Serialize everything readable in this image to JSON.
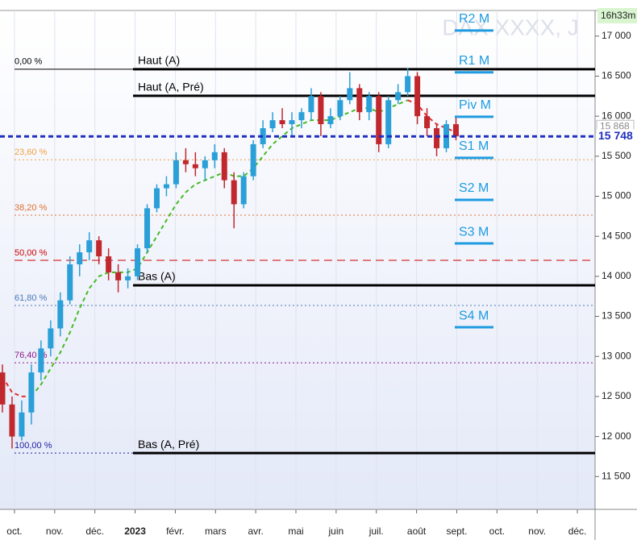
{
  "chart_data": {
    "type": "candlestick",
    "title": "DAX XXXX, J",
    "time_label": "16h33m",
    "up_color": "#2a9fd8",
    "down_color": "#c0282e",
    "xlim": [
      -0.36,
      14.44
    ],
    "xticks": [
      {
        "value": 0,
        "label": "oct."
      },
      {
        "value": 1,
        "label": "nov."
      },
      {
        "value": 2,
        "label": "déc."
      },
      {
        "value": 3,
        "label": "2023"
      },
      {
        "value": 4,
        "label": "févr."
      },
      {
        "value": 5,
        "label": "mars"
      },
      {
        "value": 6,
        "label": "avr."
      },
      {
        "value": 7,
        "label": "mai"
      },
      {
        "value": 8,
        "label": "juin"
      },
      {
        "value": 9,
        "label": "juil."
      },
      {
        "value": 10,
        "label": "août"
      },
      {
        "value": 11,
        "label": "sept."
      },
      {
        "value": 12,
        "label": "oct."
      },
      {
        "value": 13,
        "label": "nov."
      },
      {
        "value": 14,
        "label": "déc."
      }
    ],
    "ylim": [
      11090,
      17320
    ],
    "yticks": [
      {
        "value": 11500,
        "label": "11 500"
      },
      {
        "value": 12000,
        "label": "12 000"
      },
      {
        "value": 12500,
        "label": "12 500"
      },
      {
        "value": 13000,
        "label": "13 000"
      },
      {
        "value": 13500,
        "label": "13 500"
      },
      {
        "value": 14000,
        "label": "14 000"
      },
      {
        "value": 14500,
        "label": "14 500"
      },
      {
        "value": 15000,
        "label": "15 000"
      },
      {
        "value": 15500,
        "label": "15 500"
      },
      {
        "value": 16000,
        "label": "16 000"
      },
      {
        "value": 16500,
        "label": "16 500"
      },
      {
        "value": 17000,
        "label": "17 000"
      }
    ],
    "x": [
      -0.3,
      -0.06,
      0.18,
      0.42,
      0.66,
      0.9,
      1.14,
      1.38,
      1.62,
      1.86,
      2.1,
      2.34,
      2.58,
      2.82,
      3.06,
      3.3,
      3.54,
      3.78,
      4.02,
      4.26,
      4.5,
      4.74,
      4.98,
      5.22,
      5.46,
      5.7,
      5.94,
      6.18,
      6.42,
      6.66,
      6.9,
      7.14,
      7.38,
      7.62,
      7.86,
      8.1,
      8.34,
      8.58,
      8.82,
      9.06,
      9.3,
      9.54,
      9.78,
      10.02,
      10.26,
      10.5,
      10.74,
      10.98
    ],
    "open": [
      12800,
      12400,
      12000,
      12300,
      12800,
      13100,
      13350,
      13700,
      14150,
      14300,
      14450,
      14250,
      14050,
      13950,
      14000,
      14350,
      14850,
      15100,
      15150,
      15450,
      15400,
      15350,
      15450,
      15550,
      15200,
      14900,
      15250,
      15650,
      15850,
      15950,
      15900,
      15950,
      16050,
      16250,
      15900,
      16000,
      16200,
      16350,
      16050,
      16250,
      15650,
      16200,
      16300,
      16500,
      16000,
      15850,
      15600,
      15900
    ],
    "high": [
      12900,
      12500,
      12450,
      12900,
      13200,
      13450,
      13800,
      14250,
      14400,
      14550,
      14500,
      14350,
      14150,
      14100,
      14400,
      14900,
      15150,
      15250,
      15550,
      15600,
      15550,
      15500,
      15650,
      15600,
      15300,
      15300,
      15700,
      15950,
      16050,
      16100,
      16050,
      16100,
      16350,
      16300,
      16100,
      16250,
      16550,
      16400,
      16300,
      16300,
      16250,
      16400,
      16600,
      16550,
      16100,
      15900,
      15950,
      16000
    ],
    "low": [
      12300,
      11850,
      11950,
      12150,
      12700,
      13000,
      13250,
      13650,
      14000,
      14200,
      14150,
      13950,
      13800,
      13850,
      13950,
      14300,
      14800,
      15000,
      15100,
      15300,
      15250,
      15200,
      15350,
      15100,
      14600,
      14850,
      15200,
      15600,
      15800,
      15850,
      15750,
      15850,
      15950,
      15750,
      15850,
      15950,
      16150,
      15950,
      15950,
      15550,
      15600,
      16150,
      16250,
      15900,
      15750,
      15500,
      15550,
      15700
    ],
    "close": [
      12400,
      12000,
      12300,
      12800,
      13100,
      13350,
      13700,
      14150,
      14300,
      14450,
      14250,
      14050,
      13950,
      14000,
      14350,
      14850,
      15100,
      15150,
      15450,
      15400,
      15350,
      15450,
      15550,
      15200,
      14900,
      15250,
      15650,
      15850,
      15950,
      15900,
      15950,
      16050,
      16250,
      15900,
      16000,
      16200,
      16350,
      16050,
      16250,
      15650,
      16200,
      16300,
      16500,
      16000,
      15850,
      15600,
      15900,
      15748
    ],
    "moving_averages": [
      {
        "color": "#44bb22",
        "values": [
          null,
          null,
          null,
          12500,
          12650,
          12850,
          13050,
          13300,
          13600,
          13850,
          14000,
          14050,
          14050,
          14050,
          14100,
          14300,
          14500,
          14700,
          14900,
          15050,
          15150,
          15200,
          15250,
          15300,
          15250,
          15250,
          15350,
          15500,
          15650,
          15750,
          15850,
          15900,
          15950,
          15950,
          15950,
          16000,
          16050,
          16100,
          16100,
          16050,
          16100,
          16150,
          16200,
          null,
          null,
          null,
          null,
          null
        ]
      },
      {
        "color": "#e03030",
        "values": [
          12750,
          12550,
          12500,
          12500,
          null,
          null,
          null,
          null,
          null,
          null,
          null,
          null,
          null,
          null,
          null,
          null,
          null,
          null,
          null,
          null,
          null,
          null,
          null,
          null,
          null,
          null,
          null,
          null,
          null,
          null,
          null,
          null,
          null,
          null,
          null,
          null,
          null,
          null,
          null,
          null,
          null,
          null,
          16200,
          16150,
          16000,
          15900,
          15850,
          15800
        ]
      }
    ],
    "fib_levels": [
      {
        "label": "0,00 %",
        "value": 16587,
        "color": "#000000"
      },
      {
        "label": "23,60 %",
        "value": 15456,
        "color": "#f0a040"
      },
      {
        "label": "38,20 %",
        "value": 14764,
        "color": "#e07030"
      },
      {
        "label": "50,00 %",
        "value": 14200,
        "color": "#cc0000"
      },
      {
        "label": "61,80 %",
        "value": 13636,
        "color": "#4a7ab8"
      },
      {
        "label": "76,40 %",
        "value": 12921,
        "color": "#8b1a8b"
      },
      {
        "label": "100,00 %",
        "value": 11793,
        "color": "#2020a0"
      }
    ],
    "levels": [
      {
        "label": "Haut (A)",
        "value": 16587
      },
      {
        "label": "Haut (A, Pré)",
        "value": 16255
      },
      {
        "label": "Bas (A)",
        "value": 13888
      },
      {
        "label": "Bas (A, Pré)",
        "value": 11793
      }
    ],
    "pivot_color": "#1e9be0",
    "pivots": [
      {
        "label": "R2 M",
        "value": 17070
      },
      {
        "label": "R1 M",
        "value": 16547
      },
      {
        "label": "Piv M",
        "value": 15993
      },
      {
        "label": "S1 M",
        "value": 15479
      },
      {
        "label": "S2 M",
        "value": 14955
      },
      {
        "label": "S3 M",
        "value": 14411
      },
      {
        "label": "S4 M",
        "value": 13364
      }
    ],
    "last_price": {
      "value": 15748,
      "label": "15 748",
      "color": "#1f2fbf"
    },
    "prev_price": {
      "value": 15868,
      "label": "15 868"
    }
  }
}
